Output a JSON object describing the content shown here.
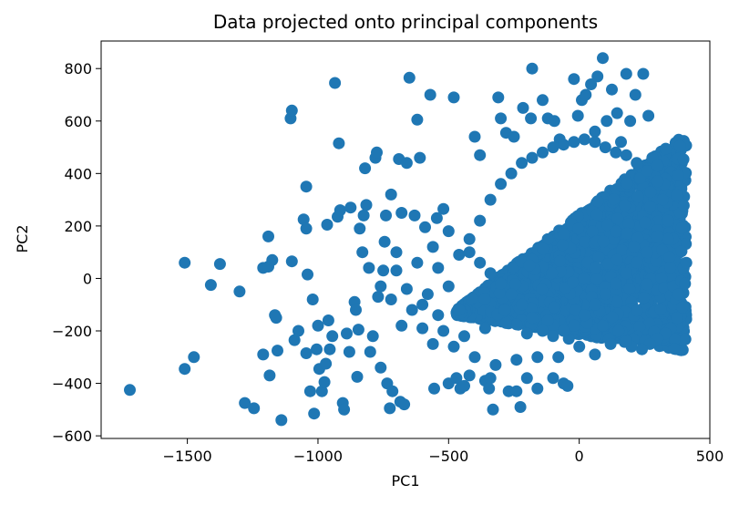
{
  "chart_data": {
    "type": "scatter",
    "title": "Data projected onto principal components",
    "xlabel": "PC1",
    "ylabel": "PC2",
    "xlim": [
      -1830,
      500
    ],
    "ylim": [
      -610,
      905
    ],
    "xticks": [
      -1500,
      -1000,
      -500,
      0,
      500
    ],
    "yticks": [
      -600,
      -400,
      -200,
      0,
      200,
      400,
      600,
      800
    ],
    "xtick_labels": [
      "−1500",
      "−1000",
      "−500",
      "0",
      "500"
    ],
    "ytick_labels": [
      "−600",
      "−400",
      "−200",
      "0",
      "200",
      "400",
      "600",
      "800"
    ],
    "grid": false,
    "series": [
      {
        "color": "#1f77b4",
        "points": [
          [
            -1720,
            -425
          ],
          [
            -1510,
            60
          ],
          [
            -1510,
            -345
          ],
          [
            -1475,
            -300
          ],
          [
            -1410,
            -25
          ],
          [
            -1375,
            55
          ],
          [
            -1300,
            -50
          ],
          [
            -1280,
            -475
          ],
          [
            -1245,
            -495
          ],
          [
            -1210,
            40
          ],
          [
            -1210,
            -290
          ],
          [
            -1190,
            160
          ],
          [
            -1190,
            45
          ],
          [
            -1185,
            -370
          ],
          [
            -1175,
            70
          ],
          [
            -1165,
            -140
          ],
          [
            -1160,
            -150
          ],
          [
            -1155,
            -275
          ],
          [
            -1140,
            -540
          ],
          [
            -1105,
            610
          ],
          [
            -1100,
            640
          ],
          [
            -1100,
            65
          ],
          [
            -1090,
            -235
          ],
          [
            -1075,
            -200
          ],
          [
            -1055,
            225
          ],
          [
            -1045,
            190
          ],
          [
            -1045,
            -285
          ],
          [
            -1045,
            350
          ],
          [
            -1040,
            15
          ],
          [
            -1030,
            -430
          ],
          [
            -1020,
            -80
          ],
          [
            -1015,
            -515
          ],
          [
            -1005,
            -270
          ],
          [
            -1000,
            -180
          ],
          [
            -995,
            -345
          ],
          [
            -985,
            -430
          ],
          [
            -975,
            -395
          ],
          [
            -970,
            -325
          ],
          [
            -965,
            205
          ],
          [
            -960,
            -160
          ],
          [
            -955,
            -270
          ],
          [
            -945,
            -220
          ],
          [
            -935,
            745
          ],
          [
            -925,
            235
          ],
          [
            -920,
            515
          ],
          [
            -915,
            260
          ],
          [
            -905,
            -475
          ],
          [
            -900,
            -500
          ],
          [
            -890,
            -210
          ],
          [
            -880,
            -280
          ],
          [
            -875,
            270
          ],
          [
            -860,
            -90
          ],
          [
            -855,
            -120
          ],
          [
            -850,
            -375
          ],
          [
            -845,
            -195
          ],
          [
            -840,
            190
          ],
          [
            -830,
            100
          ],
          [
            -825,
            240
          ],
          [
            -820,
            420
          ],
          [
            -815,
            280
          ],
          [
            -805,
            40
          ],
          [
            -800,
            -280
          ],
          [
            -790,
            -220
          ],
          [
            -780,
            460
          ],
          [
            -775,
            480
          ],
          [
            -770,
            -70
          ],
          [
            -760,
            -340
          ],
          [
            -750,
            30
          ],
          [
            -745,
            140
          ],
          [
            -740,
            240
          ],
          [
            -735,
            -400
          ],
          [
            -725,
            -495
          ],
          [
            -720,
            320
          ],
          [
            -715,
            -430
          ],
          [
            -700,
            100
          ],
          [
            -690,
            455
          ],
          [
            -685,
            -470
          ],
          [
            -680,
            250
          ],
          [
            -670,
            -480
          ],
          [
            -660,
            440
          ],
          [
            -650,
            765
          ],
          [
            -630,
            240
          ],
          [
            -620,
            605
          ],
          [
            -610,
            460
          ],
          [
            -590,
            195
          ],
          [
            -570,
            700
          ],
          [
            -555,
            -420
          ],
          [
            -545,
            230
          ],
          [
            -520,
            265
          ],
          [
            -500,
            -400
          ],
          [
            -480,
            690
          ],
          [
            -470,
            -380
          ],
          [
            -455,
            -420
          ],
          [
            -440,
            -410
          ],
          [
            -420,
            -370
          ],
          [
            -400,
            540
          ],
          [
            -380,
            470
          ],
          [
            -360,
            -390
          ],
          [
            -345,
            -420
          ],
          [
            -340,
            -380
          ],
          [
            -330,
            -500
          ],
          [
            -310,
            690
          ],
          [
            -300,
            610
          ],
          [
            -280,
            555
          ],
          [
            -270,
            -430
          ],
          [
            -250,
            540
          ],
          [
            -240,
            -430
          ],
          [
            -225,
            -490
          ],
          [
            -215,
            650
          ],
          [
            -200,
            -380
          ],
          [
            -185,
            610
          ],
          [
            -180,
            800
          ],
          [
            -160,
            -420
          ],
          [
            -140,
            680
          ],
          [
            -120,
            610
          ],
          [
            -100,
            -380
          ],
          [
            -95,
            600
          ],
          [
            -75,
            530
          ],
          [
            -60,
            -400
          ],
          [
            -45,
            -410
          ],
          [
            -20,
            760
          ],
          [
            -5,
            620
          ],
          [
            10,
            680
          ],
          [
            25,
            700
          ],
          [
            45,
            740
          ],
          [
            60,
            560
          ],
          [
            70,
            770
          ],
          [
            90,
            840
          ],
          [
            105,
            600
          ],
          [
            125,
            720
          ],
          [
            145,
            630
          ],
          [
            160,
            520
          ],
          [
            180,
            780
          ],
          [
            195,
            600
          ],
          [
            215,
            700
          ],
          [
            245,
            780
          ],
          [
            265,
            620
          ],
          [
            280,
            460
          ],
          [
            300,
            430
          ],
          [
            325,
            360
          ],
          [
            335,
            290
          ],
          [
            340,
            150
          ],
          [
            345,
            80
          ],
          [
            360,
            -30
          ],
          [
            370,
            -80
          ],
          [
            380,
            -60
          ],
          [
            390,
            -10
          ],
          [
            400,
            40
          ],
          [
            410,
            60
          ],
          [
            405,
            -20
          ],
          [
            395,
            -110
          ],
          [
            375,
            -150
          ],
          [
            350,
            -190
          ],
          [
            330,
            -210
          ],
          [
            300,
            -230
          ],
          [
            270,
            -250
          ],
          [
            240,
            -270
          ],
          [
            200,
            -260
          ],
          [
            180,
            -240
          ],
          [
            150,
            -200
          ],
          [
            120,
            -250
          ],
          [
            90,
            -180
          ],
          [
            60,
            -290
          ],
          [
            30,
            -170
          ],
          [
            0,
            -260
          ],
          [
            -40,
            -230
          ],
          [
            -80,
            -300
          ],
          [
            -120,
            -160
          ],
          [
            -160,
            -300
          ],
          [
            -200,
            -210
          ],
          [
            -240,
            -310
          ],
          [
            -280,
            -170
          ],
          [
            -320,
            -330
          ],
          [
            -360,
            -190
          ],
          [
            -400,
            -300
          ],
          [
            -440,
            -220
          ],
          [
            -480,
            -260
          ],
          [
            -520,
            -200
          ],
          [
            -560,
            -250
          ],
          [
            -600,
            -190
          ],
          [
            -640,
            -120
          ],
          [
            -680,
            -180
          ],
          [
            -720,
            -80
          ],
          [
            -760,
            -30
          ],
          [
            -700,
            30
          ],
          [
            -660,
            -40
          ],
          [
            -620,
            60
          ],
          [
            -580,
            -60
          ],
          [
            -540,
            40
          ],
          [
            -500,
            -30
          ],
          [
            -460,
            90
          ],
          [
            -420,
            150
          ],
          [
            -380,
            220
          ],
          [
            -340,
            300
          ],
          [
            -300,
            360
          ],
          [
            -260,
            400
          ],
          [
            -220,
            440
          ],
          [
            -180,
            460
          ],
          [
            -140,
            480
          ],
          [
            -100,
            500
          ],
          [
            -60,
            510
          ],
          [
            -20,
            520
          ],
          [
            20,
            530
          ],
          [
            60,
            520
          ],
          [
            100,
            500
          ],
          [
            140,
            480
          ],
          [
            180,
            470
          ],
          [
            220,
            440
          ],
          [
            260,
            410
          ],
          [
            300,
            370
          ],
          [
            320,
            300
          ],
          [
            340,
            220
          ],
          [
            300,
            160
          ],
          [
            260,
            100
          ],
          [
            220,
            60
          ],
          [
            180,
            20
          ],
          [
            140,
            -20
          ],
          [
            100,
            -60
          ],
          [
            60,
            -100
          ],
          [
            20,
            -140
          ],
          [
            -20,
            -180
          ],
          [
            -60,
            -200
          ],
          [
            -100,
            -220
          ],
          [
            -140,
            -200
          ],
          [
            -180,
            -150
          ],
          [
            -220,
            -100
          ],
          [
            -260,
            -60
          ],
          [
            -300,
            -20
          ],
          [
            -340,
            20
          ],
          [
            -380,
            60
          ],
          [
            -420,
            100
          ],
          [
            -460,
            -120
          ],
          [
            -500,
            180
          ],
          [
            -540,
            -140
          ],
          [
            -560,
            120
          ],
          [
            -600,
            -100
          ]
        ],
        "dense_blob": {
          "x_range": [
            -470,
            410
          ],
          "y_range": [
            -290,
            560
          ]
        }
      }
    ]
  }
}
